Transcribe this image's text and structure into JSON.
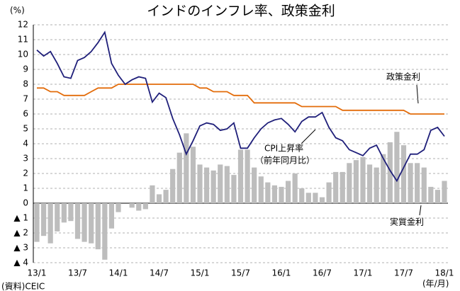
{
  "chart_data": {
    "type": "bar_line",
    "title": "インドのインフレ率、政策金利",
    "y_label": "(%)",
    "x_label": "(年/月)",
    "source": "(資料)CEIC",
    "annotations": [
      "（前年同月比）"
    ],
    "categories": [
      "13/1",
      null,
      null,
      null,
      null,
      null,
      "13/7",
      null,
      null,
      null,
      null,
      null,
      "14/1",
      null,
      null,
      null,
      null,
      null,
      "14/7",
      null,
      null,
      null,
      null,
      null,
      "15/1",
      null,
      null,
      null,
      null,
      null,
      "15/7",
      null,
      null,
      null,
      null,
      null,
      "16/1",
      null,
      null,
      null,
      null,
      null,
      "16/7",
      null,
      null,
      null,
      null,
      null,
      "17/1",
      null,
      null,
      null,
      null,
      null,
      "17/7",
      null,
      null,
      null,
      null,
      null,
      "18/1"
    ],
    "series": [
      {
        "name": "実質金利",
        "kind": "bar",
        "color": "#bdbdbd",
        "values": [
          -2.6,
          -2.2,
          -2.7,
          -1.9,
          -1.3,
          -1.2,
          -2.4,
          -2.6,
          -2.7,
          -3.1,
          -3.8,
          -1.7,
          -0.6,
          0,
          -0.3,
          -0.5,
          -0.4,
          1.2,
          0.6,
          0.9,
          2.3,
          3.4,
          4.7,
          3.8,
          2.6,
          2.4,
          2.2,
          2.6,
          2.5,
          1.9,
          3.6,
          3.6,
          2.4,
          1.8,
          1.4,
          1.2,
          1.1,
          1.5,
          2.0,
          1.0,
          0.7,
          0.7,
          0.4,
          1.4,
          2.1,
          2.1,
          2.7,
          2.9,
          3.1,
          2.6,
          2.4,
          3.3,
          4.1,
          4.8,
          3.9,
          2.7,
          2.7,
          2.4,
          1.1,
          0.9,
          1.5
        ]
      },
      {
        "name": "政策金利",
        "kind": "line",
        "color": "#e36c0a",
        "values": [
          7.75,
          7.75,
          7.5,
          7.5,
          7.25,
          7.25,
          7.25,
          7.25,
          7.5,
          7.75,
          7.75,
          7.75,
          8,
          8,
          8,
          8,
          8,
          8,
          8,
          8,
          8,
          8,
          8,
          8,
          7.75,
          7.75,
          7.5,
          7.5,
          7.5,
          7.25,
          7.25,
          7.25,
          6.75,
          6.75,
          6.75,
          6.75,
          6.75,
          6.75,
          6.75,
          6.5,
          6.5,
          6.5,
          6.5,
          6.5,
          6.5,
          6.25,
          6.25,
          6.25,
          6.25,
          6.25,
          6.25,
          6.25,
          6.25,
          6.25,
          6.25,
          6,
          6,
          6,
          6,
          6,
          6
        ]
      },
      {
        "name": "CPI上昇率",
        "kind": "line",
        "color": "#1f1f7a",
        "values": [
          10.3,
          9.9,
          10.2,
          9.4,
          8.5,
          8.4,
          9.6,
          9.8,
          10.2,
          10.8,
          11.5,
          9.4,
          8.6,
          8.0,
          8.3,
          8.5,
          8.4,
          6.8,
          7.4,
          7.1,
          5.7,
          4.6,
          3.3,
          4.2,
          5.2,
          5.4,
          5.3,
          4.9,
          5.0,
          5.4,
          3.7,
          3.7,
          4.4,
          5.0,
          5.4,
          5.6,
          5.7,
          5.3,
          4.8,
          5.5,
          5.8,
          5.8,
          6.1,
          5.1,
          4.4,
          4.2,
          3.6,
          3.4,
          3.2,
          3.7,
          3.9,
          3.0,
          2.2,
          1.5,
          2.4,
          3.3,
          3.3,
          3.6,
          4.9,
          5.1,
          4.5
        ]
      }
    ],
    "ylim": [
      -4,
      12
    ],
    "yticks": [
      {
        "value": -4,
        "label": "▲ 4"
      },
      {
        "value": -3,
        "label": "▲ 3"
      },
      {
        "value": -2,
        "label": "▲ 2"
      },
      {
        "value": -1,
        "label": "▲ 1"
      },
      0,
      1,
      2,
      3,
      4,
      5,
      6,
      7,
      8,
      9,
      10,
      11,
      12
    ],
    "grid": true
  }
}
